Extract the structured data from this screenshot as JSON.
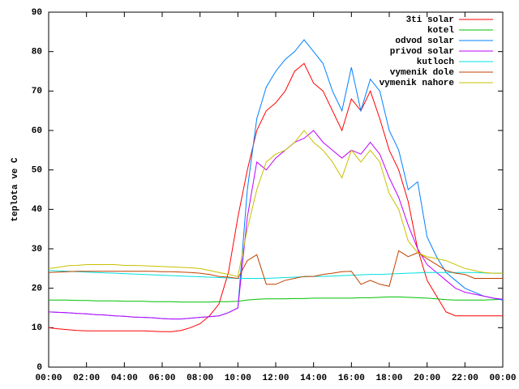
{
  "chart_data": {
    "type": "line",
    "ylabel": "teplota ve C",
    "legend": "top right",
    "ylim": [
      0,
      90
    ],
    "yticks": [
      0,
      10,
      20,
      30,
      40,
      50,
      60,
      70,
      80,
      90
    ],
    "xlim": [
      0,
      24
    ],
    "xticks": [
      {
        "value": 0,
        "label": "00:00"
      },
      {
        "value": 2,
        "label": "02:00"
      },
      {
        "value": 4,
        "label": "04:00"
      },
      {
        "value": 6,
        "label": "06:00"
      },
      {
        "value": 8,
        "label": "08:00"
      },
      {
        "value": 10,
        "label": "10:00"
      },
      {
        "value": 12,
        "label": "12:00"
      },
      {
        "value": 14,
        "label": "14:00"
      },
      {
        "value": 16,
        "label": "16:00"
      },
      {
        "value": 18,
        "label": "18:00"
      },
      {
        "value": 20,
        "label": "20:00"
      },
      {
        "value": 22,
        "label": "22:00"
      },
      {
        "value": 24,
        "label": "00:00"
      }
    ],
    "x": [
      0,
      0.5,
      1,
      1.5,
      2,
      2.5,
      3,
      3.5,
      4,
      4.5,
      5,
      5.5,
      6,
      6.5,
      7,
      7.5,
      8,
      8.5,
      9,
      9.5,
      10,
      10.5,
      11,
      11.5,
      12,
      12.5,
      13,
      13.5,
      14,
      14.5,
      15,
      15.5,
      16,
      16.5,
      17,
      17.5,
      18,
      18.5,
      19,
      19.5,
      20,
      20.5,
      21,
      21.5,
      22,
      22.5,
      23,
      23.5,
      24
    ],
    "series": [
      {
        "name": "3ti solar",
        "color": "#ff0000",
        "values": [
          10,
          9.7,
          9.5,
          9.3,
          9.2,
          9.2,
          9.2,
          9.2,
          9.2,
          9.2,
          9.2,
          9.1,
          9,
          9,
          9.3,
          10,
          11,
          13,
          16,
          24,
          38,
          50,
          60,
          65,
          67,
          70,
          75,
          77,
          72,
          70,
          65,
          60,
          68,
          65,
          70,
          63,
          55,
          50,
          42,
          30,
          22,
          18,
          14,
          13,
          13,
          13,
          13,
          13,
          13
        ]
      },
      {
        "name": "kotel",
        "color": "#00c000",
        "values": [
          17,
          17,
          17,
          16.9,
          16.9,
          16.8,
          16.8,
          16.8,
          16.7,
          16.7,
          16.7,
          16.6,
          16.6,
          16.6,
          16.5,
          16.5,
          16.5,
          16.5,
          16.6,
          16.6,
          16.7,
          17,
          17.2,
          17.3,
          17.3,
          17.3,
          17.4,
          17.4,
          17.5,
          17.5,
          17.5,
          17.5,
          17.5,
          17.6,
          17.6,
          17.7,
          17.8,
          17.8,
          17.7,
          17.6,
          17.5,
          17.3,
          17.1,
          17,
          17,
          17,
          17,
          17.1,
          17.2
        ]
      },
      {
        "name": "odvod solar",
        "color": "#0080ff",
        "values": [
          14,
          13.9,
          13.8,
          13.6,
          13.5,
          13.3,
          13.2,
          13,
          12.9,
          12.7,
          12.6,
          12.5,
          12.3,
          12.2,
          12.2,
          12.4,
          12.6,
          12.8,
          13,
          13.8,
          15,
          45,
          63,
          71,
          75,
          78,
          80,
          83,
          80,
          77,
          70,
          65,
          76,
          65,
          73,
          70,
          60,
          55,
          45,
          47,
          33,
          28,
          24,
          22,
          20,
          19,
          18,
          17.5,
          17
        ]
      },
      {
        "name": "privod solar",
        "color": "#c000ff",
        "values": [
          14,
          13.9,
          13.8,
          13.6,
          13.5,
          13.3,
          13.2,
          13,
          12.9,
          12.7,
          12.6,
          12.5,
          12.3,
          12.2,
          12.2,
          12.4,
          12.6,
          12.8,
          13,
          13.8,
          15,
          38,
          52,
          50,
          53,
          55,
          57,
          58,
          60,
          57,
          55,
          53,
          55,
          54,
          57,
          54,
          48,
          43,
          36,
          30,
          26,
          24,
          22,
          20,
          19,
          18.5,
          18,
          17.5,
          17.2
        ]
      },
      {
        "name": "kutloch",
        "color": "#00e0e0",
        "values": [
          24.5,
          24.4,
          24.3,
          24.2,
          24.1,
          24,
          23.9,
          23.8,
          23.7,
          23.6,
          23.5,
          23.4,
          23.3,
          23.2,
          23.1,
          23,
          22.9,
          22.8,
          22.7,
          22.6,
          22.5,
          22.5,
          22.5,
          22.5,
          22.6,
          22.7,
          22.8,
          22.9,
          23,
          23,
          23.1,
          23.2,
          23.3,
          23.4,
          23.5,
          23.5,
          23.6,
          23.7,
          23.8,
          23.9,
          24,
          24,
          24,
          24,
          24,
          24,
          23.9,
          23.8,
          23.8
        ]
      },
      {
        "name": "vymenik dole",
        "color": "#c04000",
        "values": [
          24,
          24.1,
          24.2,
          24.3,
          24.3,
          24.3,
          24.3,
          24.3,
          24.3,
          24.3,
          24.3,
          24.3,
          24.2,
          24.2,
          24.1,
          24,
          23.8,
          23.5,
          23,
          22.8,
          22.5,
          27,
          28.5,
          21,
          21,
          22,
          22.5,
          23,
          23,
          23.5,
          23.8,
          24.2,
          24.3,
          21,
          22,
          21,
          20.5,
          29.5,
          28,
          29,
          27.5,
          26,
          24.5,
          23.8,
          23.5,
          22.5,
          22.5,
          22.5,
          22.5
        ]
      },
      {
        "name": "vymenik nahore",
        "color": "#c8c000",
        "values": [
          25,
          25.3,
          25.7,
          25.8,
          26,
          26,
          26,
          26,
          25.8,
          25.8,
          25.7,
          25.6,
          25.5,
          25.4,
          25.3,
          25.2,
          25,
          24.5,
          24,
          23.5,
          23,
          35,
          45,
          52,
          54,
          55,
          57,
          60,
          57,
          55,
          52,
          48,
          55,
          52,
          55,
          52,
          44,
          40,
          32,
          29,
          28,
          27.5,
          27,
          26,
          25,
          24.5,
          24,
          23.8,
          23.8
        ]
      }
    ]
  }
}
